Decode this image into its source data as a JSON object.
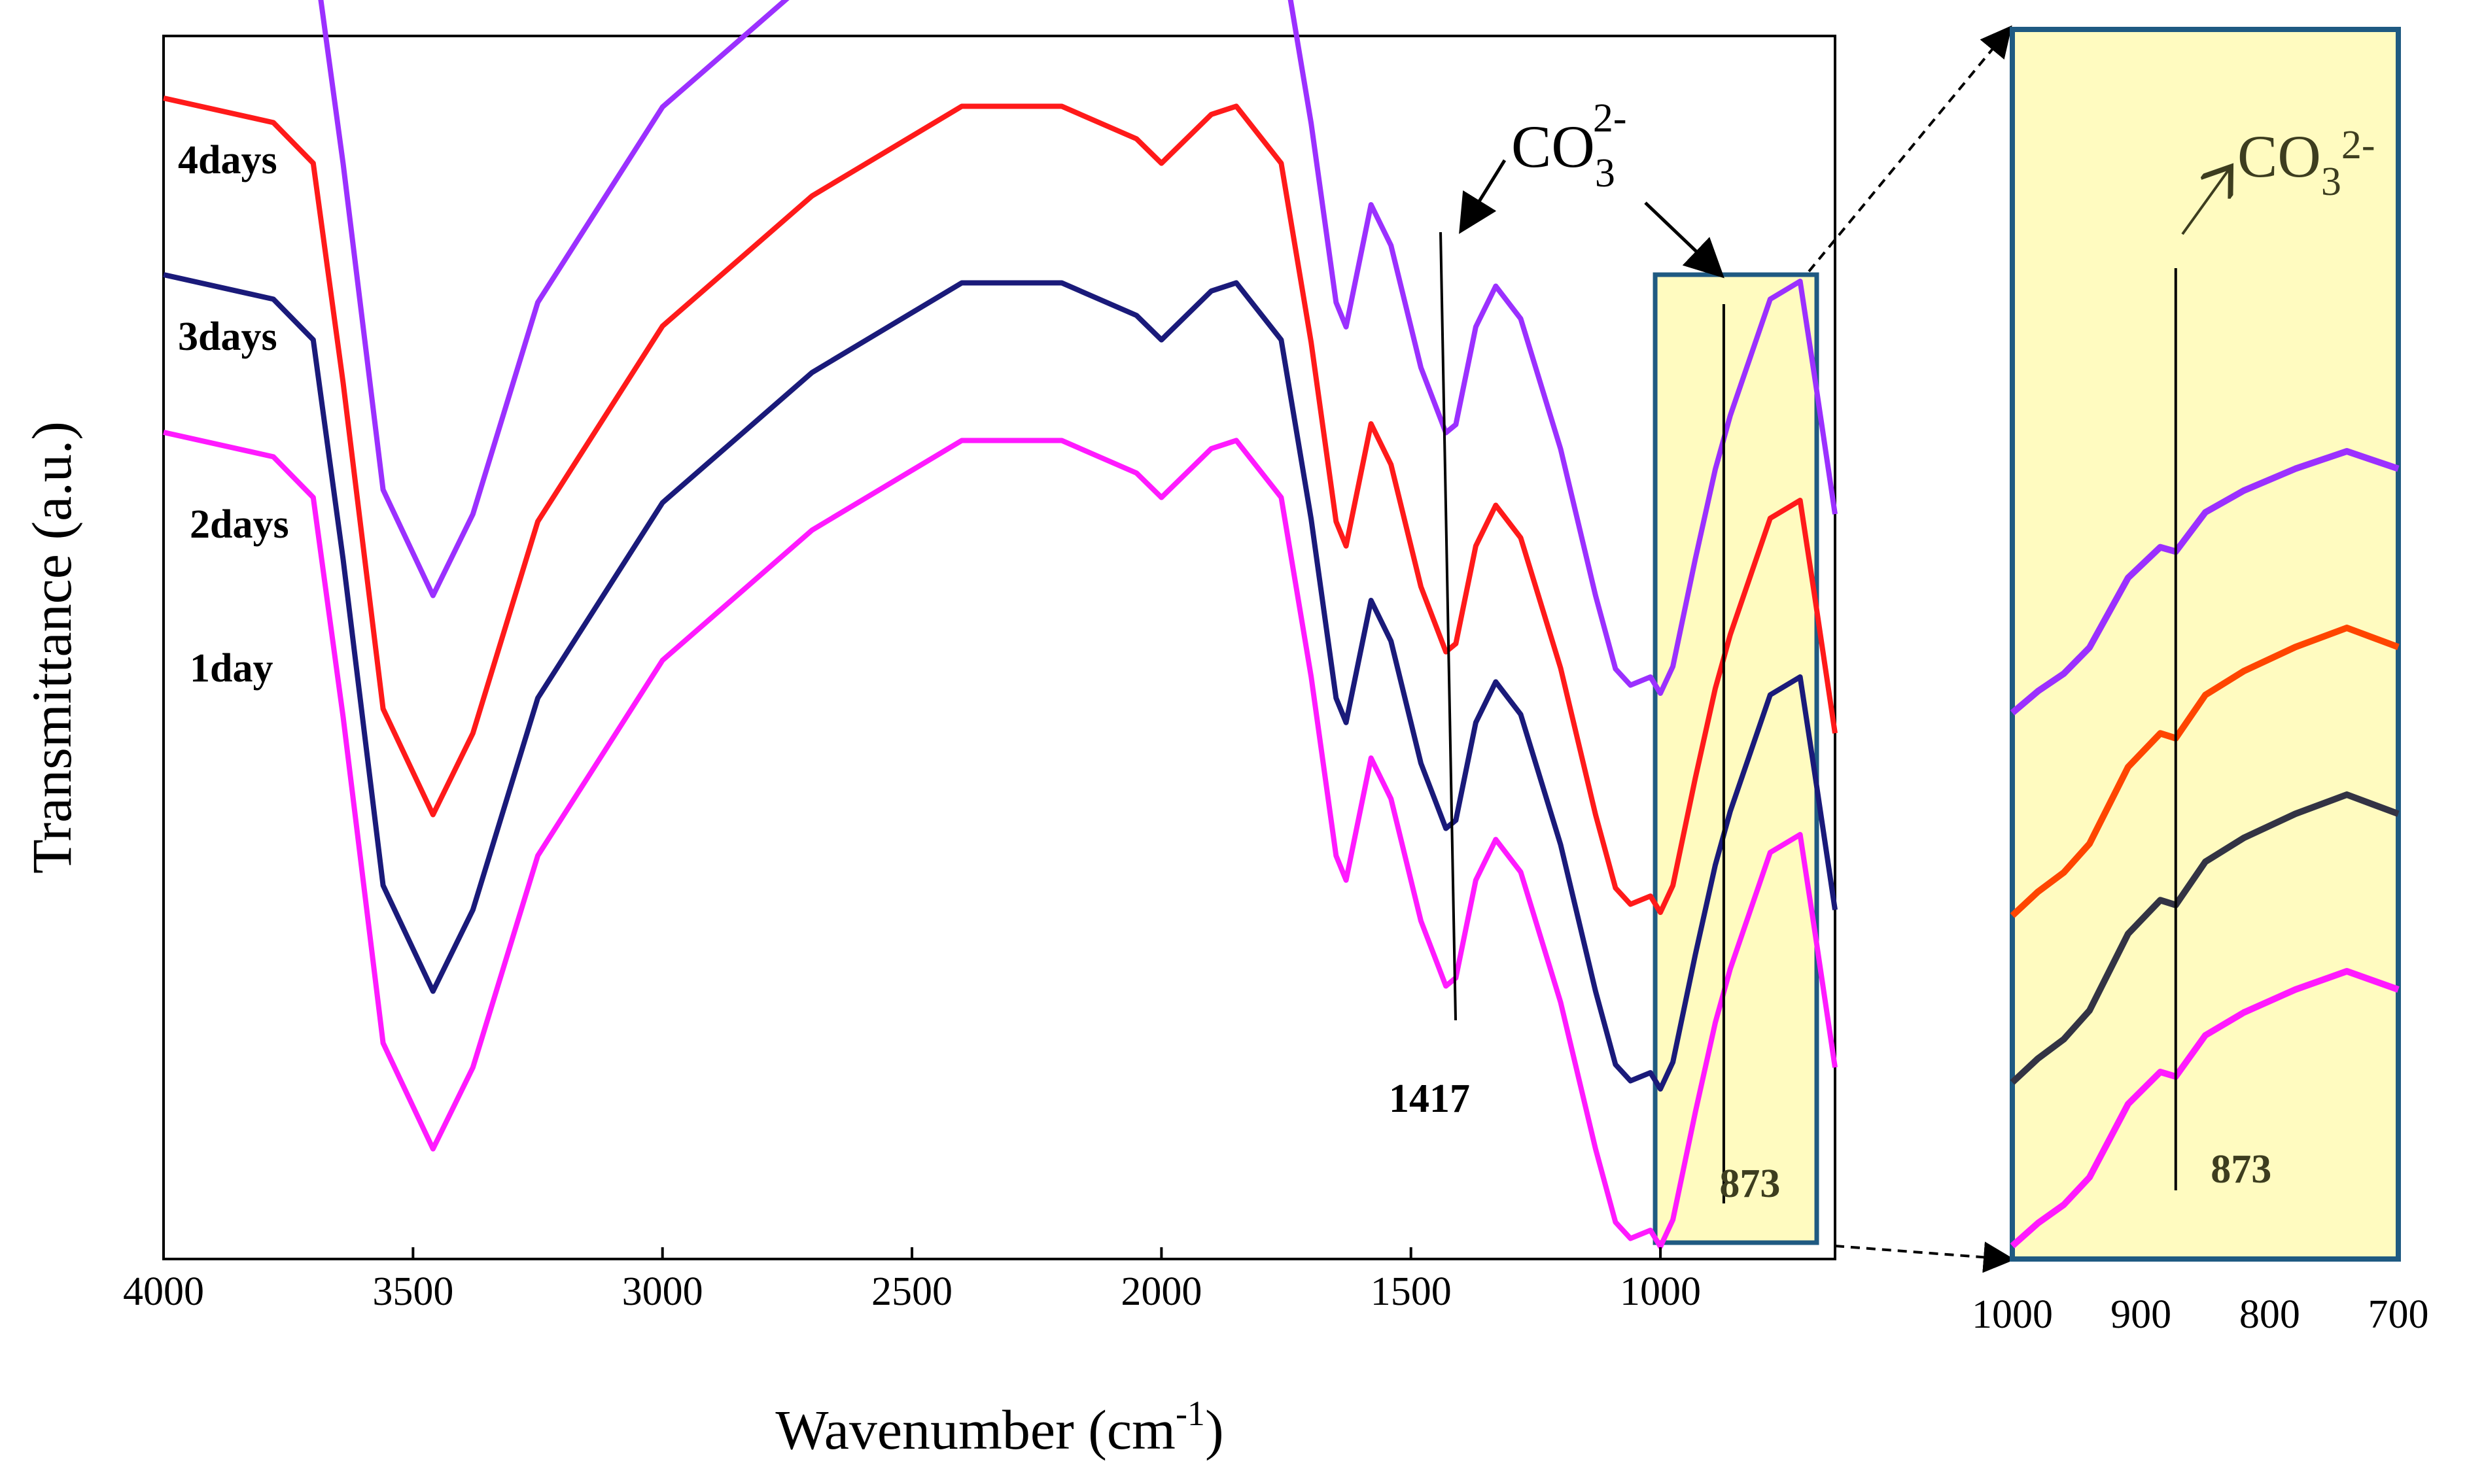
{
  "chart_data": {
    "type": "line",
    "title": "",
    "xlabel": "Wavenumber (cm",
    "xlabel_sup": "-1",
    "xlabel_close": ")",
    "ylabel": "Transmittance (a.u.)",
    "xlim": [
      4000,
      650
    ],
    "xticks": [
      "4000",
      "3500",
      "3000",
      "2500",
      "2000",
      "1500",
      "1000"
    ],
    "series": [
      {
        "name": "4days",
        "color": "#9b30ff",
        "offset": 3,
        "keypoints": [
          [
            4000,
            100
          ],
          [
            3780,
            97
          ],
          [
            3700,
            92
          ],
          [
            3640,
            65
          ],
          [
            3560,
            25
          ],
          [
            3460,
            12
          ],
          [
            3380,
            22
          ],
          [
            3250,
            48
          ],
          [
            3000,
            72
          ],
          [
            2700,
            88
          ],
          [
            2400,
            99
          ],
          [
            2200,
            99
          ],
          [
            2050,
            95
          ],
          [
            2000,
            92
          ],
          [
            1900,
            98
          ],
          [
            1850,
            99
          ],
          [
            1760,
            92
          ],
          [
            1700,
            70
          ],
          [
            1650,
            48
          ],
          [
            1630,
            45
          ],
          [
            1580,
            60
          ],
          [
            1540,
            55
          ],
          [
            1480,
            40
          ],
          [
            1430,
            32
          ],
          [
            1410,
            33
          ],
          [
            1370,
            45
          ],
          [
            1330,
            50
          ],
          [
            1280,
            46
          ],
          [
            1200,
            30
          ],
          [
            1130,
            12
          ],
          [
            1090,
            3
          ],
          [
            1060,
            1
          ],
          [
            1020,
            2
          ],
          [
            1000,
            0
          ]
        ]
      },
      {
        "name": "3days",
        "color": "#ff1a1a",
        "offset": 2,
        "keypoints": [
          [
            4000,
            100
          ],
          [
            3780,
            97
          ],
          [
            3700,
            92
          ],
          [
            3640,
            65
          ],
          [
            3560,
            25
          ],
          [
            3460,
            12
          ],
          [
            3380,
            22
          ],
          [
            3250,
            48
          ],
          [
            3000,
            72
          ],
          [
            2700,
            88
          ],
          [
            2400,
            99
          ],
          [
            2200,
            99
          ],
          [
            2050,
            95
          ],
          [
            2000,
            92
          ],
          [
            1900,
            98
          ],
          [
            1850,
            99
          ],
          [
            1760,
            92
          ],
          [
            1700,
            70
          ],
          [
            1650,
            48
          ],
          [
            1630,
            45
          ],
          [
            1580,
            60
          ],
          [
            1540,
            55
          ],
          [
            1480,
            40
          ],
          [
            1430,
            32
          ],
          [
            1410,
            33
          ],
          [
            1370,
            45
          ],
          [
            1330,
            50
          ],
          [
            1280,
            46
          ],
          [
            1200,
            30
          ],
          [
            1130,
            12
          ],
          [
            1090,
            3
          ],
          [
            1060,
            1
          ],
          [
            1020,
            2
          ],
          [
            1000,
            0
          ]
        ]
      },
      {
        "name": "2days",
        "color": "#1a1a7a",
        "offset": 1,
        "keypoints": [
          [
            4000,
            100
          ],
          [
            3780,
            97
          ],
          [
            3700,
            92
          ],
          [
            3640,
            65
          ],
          [
            3560,
            25
          ],
          [
            3460,
            12
          ],
          [
            3380,
            22
          ],
          [
            3250,
            48
          ],
          [
            3000,
            72
          ],
          [
            2700,
            88
          ],
          [
            2400,
            99
          ],
          [
            2200,
            99
          ],
          [
            2050,
            95
          ],
          [
            2000,
            92
          ],
          [
            1900,
            98
          ],
          [
            1850,
            99
          ],
          [
            1760,
            92
          ],
          [
            1700,
            70
          ],
          [
            1650,
            48
          ],
          [
            1630,
            45
          ],
          [
            1580,
            60
          ],
          [
            1540,
            55
          ],
          [
            1480,
            40
          ],
          [
            1430,
            32
          ],
          [
            1410,
            33
          ],
          [
            1370,
            45
          ],
          [
            1330,
            50
          ],
          [
            1280,
            46
          ],
          [
            1200,
            30
          ],
          [
            1130,
            12
          ],
          [
            1090,
            3
          ],
          [
            1060,
            1
          ],
          [
            1020,
            2
          ],
          [
            1000,
            0
          ]
        ]
      },
      {
        "name": "1day",
        "color": "#ff1aff",
        "offset": 0,
        "keypoints": [
          [
            4000,
            100
          ],
          [
            3780,
            97
          ],
          [
            3700,
            92
          ],
          [
            3640,
            65
          ],
          [
            3560,
            25
          ],
          [
            3460,
            12
          ],
          [
            3380,
            22
          ],
          [
            3250,
            48
          ],
          [
            3000,
            72
          ],
          [
            2700,
            88
          ],
          [
            2400,
            99
          ],
          [
            2200,
            99
          ],
          [
            2050,
            95
          ],
          [
            2000,
            92
          ],
          [
            1900,
            98
          ],
          [
            1850,
            99
          ],
          [
            1760,
            92
          ],
          [
            1700,
            70
          ],
          [
            1650,
            48
          ],
          [
            1630,
            45
          ],
          [
            1580,
            60
          ],
          [
            1540,
            55
          ],
          [
            1480,
            40
          ],
          [
            1430,
            32
          ],
          [
            1410,
            33
          ],
          [
            1370,
            45
          ],
          [
            1330,
            50
          ],
          [
            1280,
            46
          ],
          [
            1200,
            30
          ],
          [
            1130,
            12
          ],
          [
            1090,
            3
          ],
          [
            1060,
            1
          ],
          [
            1020,
            2
          ],
          [
            1000,
            0
          ]
        ]
      }
    ],
    "annotations": {
      "co3_main": "CO",
      "co3_sub": "3",
      "co3_sup": "2-",
      "peak_1417": "1417",
      "peak_873": "873",
      "highlight_range": [
        1000,
        650
      ]
    },
    "inset": {
      "xlim": [
        1000,
        700
      ],
      "xticks": [
        "1000",
        "900",
        "800",
        "700"
      ],
      "co3": "CO",
      "co3_sub": "3",
      "co3_sup": "2-",
      "peak_label": "873",
      "peak_x": 873,
      "series_colors": [
        "#9b30ff",
        "#ff4500",
        "#333344",
        "#ff1aff"
      ]
    }
  }
}
